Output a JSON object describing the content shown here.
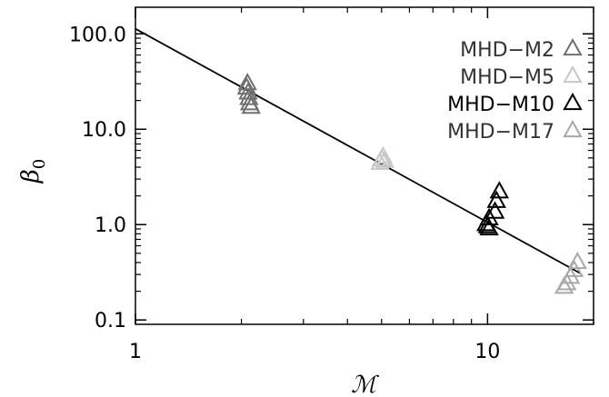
{
  "chart_data": {
    "type": "scatter",
    "title": "",
    "xlabel": "ℳ",
    "ylabel": "β",
    "ylabel_subscript": "0",
    "xscale": "log",
    "yscale": "log",
    "xlim": [
      1,
      20
    ],
    "ylim": [
      0.09,
      190
    ],
    "grid": false,
    "legend_position": "top-right",
    "x_ticks": [
      {
        "value": 1,
        "label": "1"
      },
      {
        "value": 10,
        "label": "10"
      }
    ],
    "y_ticks": [
      {
        "value": 0.1,
        "label": "0.1"
      },
      {
        "value": 1,
        "label": "1.0"
      },
      {
        "value": 10,
        "label": "10.0"
      },
      {
        "value": 100,
        "label": "100.0"
      }
    ],
    "series": [
      {
        "name": "MHD−M2",
        "color": "#707070",
        "marker": "triangle",
        "points": [
          [
            2.08,
            30
          ],
          [
            2.07,
            27
          ],
          [
            2.09,
            24
          ],
          [
            2.1,
            21
          ],
          [
            2.11,
            18.5
          ],
          [
            2.13,
            17
          ]
        ]
      },
      {
        "name": "MHD−M5",
        "color": "#c8c8c8",
        "marker": "triangle",
        "points": [
          [
            5.05,
            5.1
          ],
          [
            5.0,
            4.8
          ],
          [
            5.1,
            4.6
          ],
          [
            4.95,
            4.4
          ]
        ]
      },
      {
        "name": "MHD−M10",
        "color": "#000000",
        "marker": "triangle",
        "points": [
          [
            10.8,
            2.2
          ],
          [
            10.6,
            1.75
          ],
          [
            10.5,
            1.35
          ],
          [
            10.1,
            1.15
          ],
          [
            9.9,
            1.0
          ],
          [
            10.0,
            0.95
          ],
          [
            10.1,
            0.9
          ]
        ]
      },
      {
        "name": "MHD−M17",
        "color": "#a8a8a8",
        "marker": "triangle",
        "points": [
          [
            18.0,
            0.4
          ],
          [
            17.6,
            0.33
          ],
          [
            17.2,
            0.28
          ],
          [
            16.8,
            0.24
          ],
          [
            16.5,
            0.22
          ]
        ]
      }
    ],
    "fit_line": {
      "from": [
        1,
        113
      ],
      "to": [
        18.3,
        0.31
      ],
      "color": "#000000"
    }
  }
}
